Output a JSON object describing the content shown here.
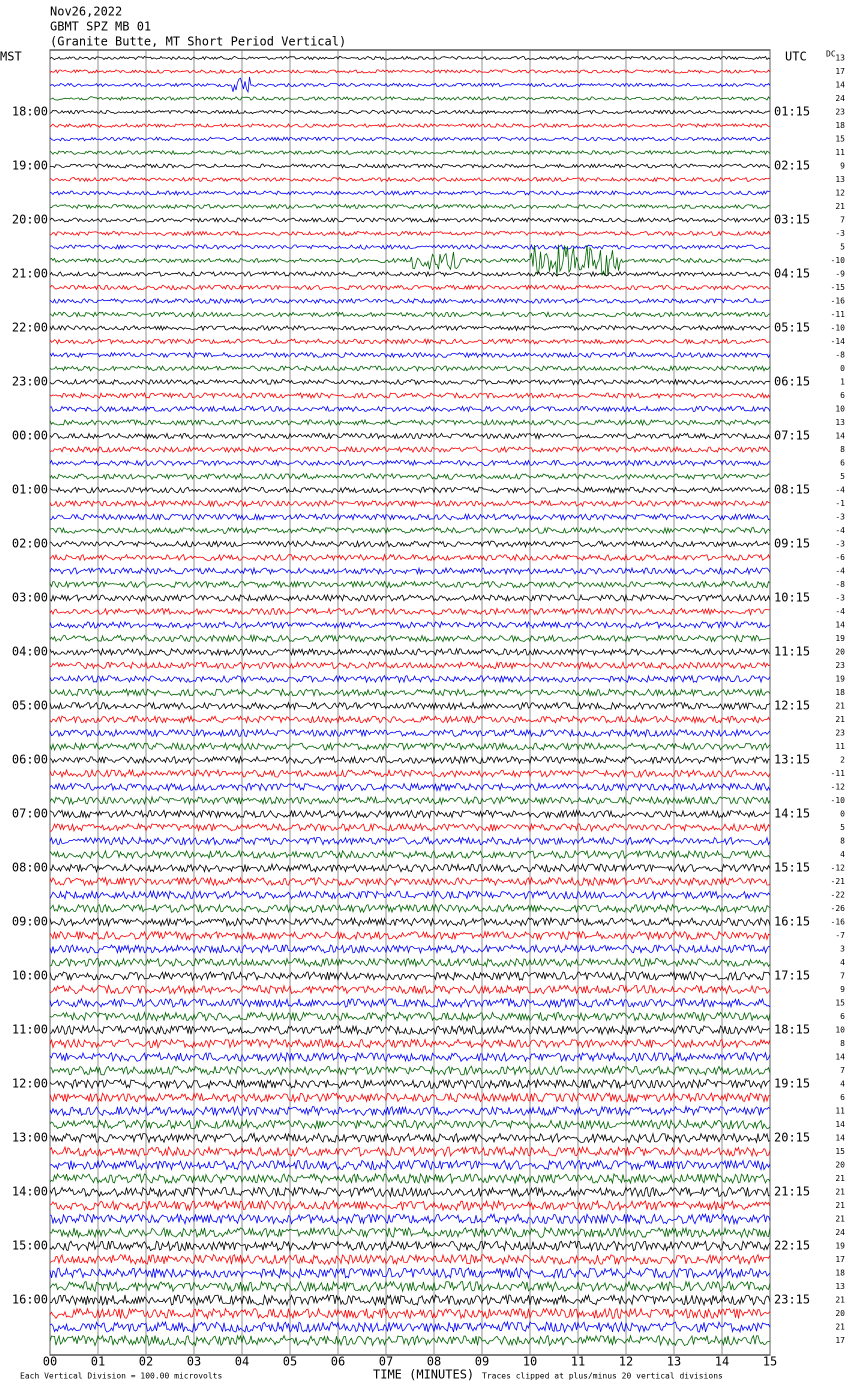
{
  "header": {
    "date": "Nov26,2022",
    "station": "GBMT SPZ MB 01",
    "location": "(Granite Butte, MT Short Period Vertical)",
    "left_zone": "MST",
    "right_zone": "UTC",
    "dc_label": "DC"
  },
  "mst_labels": [
    "18:00",
    "19:00",
    "20:00",
    "21:00",
    "22:00",
    "23:00",
    "00:00",
    "01:00",
    "02:00",
    "03:00",
    "04:00",
    "05:00",
    "06:00",
    "07:00",
    "08:00",
    "09:00",
    "10:00",
    "11:00",
    "12:00",
    "13:00",
    "14:00",
    "15:00",
    "16:00"
  ],
  "utc_labels": [
    "01:15",
    "02:15",
    "03:15",
    "04:15",
    "05:15",
    "06:15",
    "07:15",
    "08:15",
    "09:15",
    "10:15",
    "11:15",
    "12:15",
    "13:15",
    "14:15",
    "15:15",
    "16:15",
    "17:15",
    "18:15",
    "19:15",
    "20:15",
    "21:15",
    "22:15",
    "23:15"
  ],
  "dc_offsets": [
    13,
    17,
    14,
    24,
    23,
    18,
    15,
    11,
    9,
    13,
    12,
    21,
    7,
    -3,
    5,
    -10,
    -9,
    -15,
    -16,
    -11,
    -10,
    -14,
    -8,
    0,
    1,
    6,
    10,
    13,
    14,
    8,
    6,
    5,
    -4,
    -1,
    -3,
    -4,
    -3,
    -6,
    -4,
    -8,
    -3,
    -4,
    14,
    19,
    20,
    23,
    19,
    18,
    21,
    21,
    23,
    11,
    2,
    -11,
    -12,
    -10,
    0,
    5,
    8,
    4,
    -12,
    -21,
    -22,
    -26,
    -16,
    -7,
    3,
    4,
    7,
    9,
    15,
    6,
    10,
    8,
    14,
    7,
    4,
    6,
    11,
    14,
    14,
    15,
    20,
    21,
    21,
    21,
    21,
    24,
    19,
    17,
    18,
    13,
    21,
    20,
    21,
    17
  ],
  "xticks": [
    {
      "value": 0,
      "label": "00"
    },
    {
      "value": 1,
      "label": "01"
    },
    {
      "value": 2,
      "label": "02"
    },
    {
      "value": 3,
      "label": "03"
    },
    {
      "value": 4,
      "label": "04"
    },
    {
      "value": 5,
      "label": "05"
    },
    {
      "value": 6,
      "label": "06"
    },
    {
      "value": 7,
      "label": "07"
    },
    {
      "value": 8,
      "label": "08"
    },
    {
      "value": 9,
      "label": "09"
    },
    {
      "value": 10,
      "label": "10"
    },
    {
      "value": 11,
      "label": "11"
    },
    {
      "value": 12,
      "label": "12"
    },
    {
      "value": 13,
      "label": "13"
    },
    {
      "value": 14,
      "label": "14"
    },
    {
      "value": 15,
      "label": "15"
    }
  ],
  "xlim": [
    0,
    15
  ],
  "trace_colors": [
    "#000000",
    "#ff0000",
    "#0000ff",
    "#006400"
  ],
  "footer": {
    "scale": "Each Vertical Division =  100.00 microvolts",
    "axis_label": "TIME (MINUTES)",
    "clip": "Traces clipped at plus/minus 20 vertical divisions"
  }
}
